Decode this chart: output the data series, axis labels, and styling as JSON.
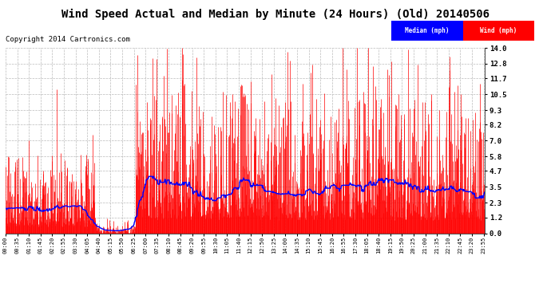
{
  "title": "Wind Speed Actual and Median by Minute (24 Hours) (Old) 20140506",
  "copyright": "Copyright 2014 Cartronics.com",
  "yticks": [
    0.0,
    1.2,
    2.3,
    3.5,
    4.7,
    5.8,
    7.0,
    8.2,
    9.3,
    10.5,
    11.7,
    12.8,
    14.0
  ],
  "ylim": [
    0.0,
    14.0
  ],
  "wind_color": "#ff0000",
  "median_color": "#0000ff",
  "bg_color": "#ffffff",
  "grid_color": "#bbbbbb",
  "legend_median_bg": "#0000ff",
  "legend_wind_bg": "#ff0000",
  "title_fontsize": 10,
  "copyright_fontsize": 6.5,
  "n_minutes": 1440,
  "seed": 42
}
